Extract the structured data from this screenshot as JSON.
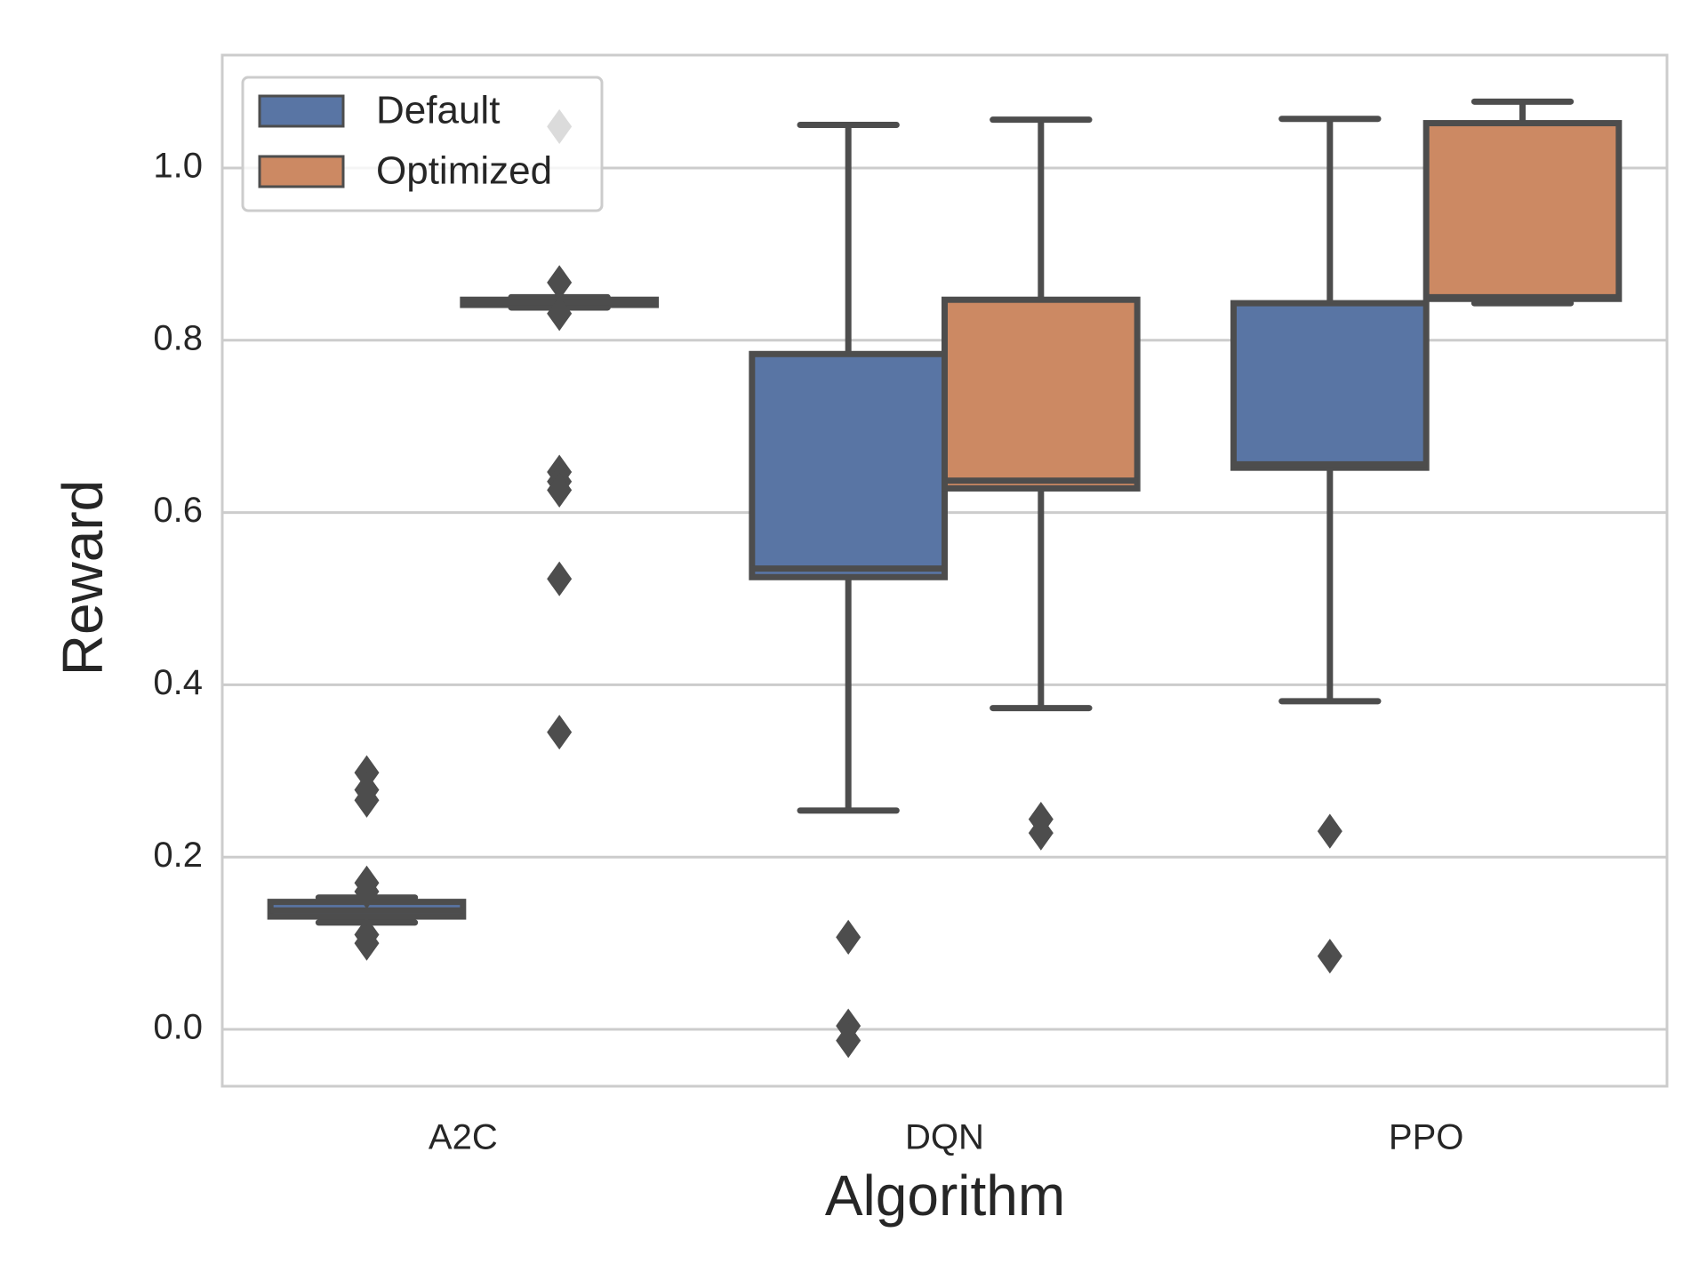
{
  "chart_data": {
    "type": "box",
    "xlabel": "Algorithm",
    "ylabel": "Reward",
    "categories": [
      "A2C",
      "DQN",
      "PPO"
    ],
    "ylim": [
      -0.066,
      1.131
    ],
    "yticks": [
      {
        "value": 0,
        "label": "0.0"
      },
      0.2,
      0.4,
      0.6,
      0.8,
      {
        "value": 1,
        "label": "1.0"
      }
    ],
    "grid": true,
    "legend": "upper left",
    "series": [
      {
        "name": "Default",
        "color": "#5975a4",
        "boxes": [
          {
            "whislo": 0.124,
            "q1": 0.131,
            "med": 0.138,
            "q3": 0.148,
            "whishi": 0.153,
            "fliers": [
              0.298,
              0.278,
              0.266,
              0.17,
              0.16,
              0.11,
              0.1
            ]
          },
          {
            "whislo": 0.254,
            "q1": 0.525,
            "med": 0.535,
            "q3": 0.784,
            "whishi": 1.05,
            "fliers": [
              0.107,
              0.004,
              -0.013
            ]
          },
          {
            "whislo": 0.381,
            "q1": 0.652,
            "med": 0.656,
            "q3": 0.843,
            "whishi": 1.057,
            "fliers": [
              0.23,
              0.085
            ]
          }
        ]
      },
      {
        "name": "Optimized",
        "color": "#cc8963",
        "boxes": [
          {
            "whislo": 0.838,
            "q1": 0.841,
            "med": 0.844,
            "q3": 0.847,
            "whishi": 0.85,
            "fliers": [
              1.048,
              0.867,
              0.831,
              0.647,
              0.636,
              0.626,
              0.523,
              0.345
            ]
          },
          {
            "whislo": 0.373,
            "q1": 0.628,
            "med": 0.637,
            "q3": 0.847,
            "whishi": 1.056,
            "fliers": [
              0.244,
              0.228
            ]
          },
          {
            "whislo": 0.843,
            "q1": 0.848,
            "med": 0.85,
            "q3": 1.052,
            "whishi": 1.077,
            "fliers": []
          }
        ]
      }
    ]
  }
}
